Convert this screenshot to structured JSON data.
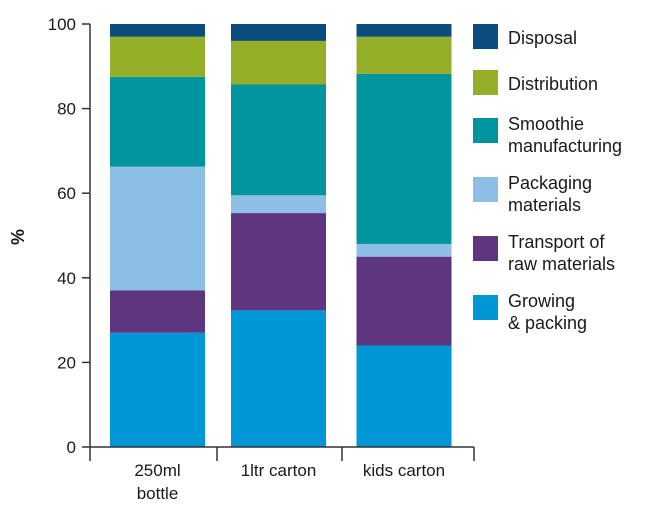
{
  "chart_data": {
    "type": "bar",
    "stacked": true,
    "ylabel": "%",
    "ylim": [
      0,
      100
    ],
    "yticks": [
      0,
      20,
      40,
      60,
      80,
      100
    ],
    "grid": false,
    "legend_position": "right",
    "categories": [
      "250ml bottle",
      "1ltr carton",
      "kids carton"
    ],
    "category_lines": [
      [
        "250ml",
        "bottle"
      ],
      [
        "1ltr carton"
      ],
      [
        "kids carton"
      ]
    ],
    "series": [
      {
        "name": "Growing & packing",
        "label_lines": [
          "Growing",
          "& packing"
        ],
        "color": "#0097d7",
        "values": [
          27,
          32.3,
          24
        ]
      },
      {
        "name": "Transport of raw materials",
        "label_lines": [
          "Transport of",
          "raw materials"
        ],
        "color": "#5e357f",
        "values": [
          10,
          23,
          21
        ]
      },
      {
        "name": "Packaging materials",
        "label_lines": [
          "Packaging",
          "materials"
        ],
        "color": "#8dbfe6",
        "values": [
          29.3,
          4.2,
          3
        ]
      },
      {
        "name": "Smoothie manufacturing",
        "label_lines": [
          "Smoothie",
          "manufacturing"
        ],
        "color": "#00949f",
        "values": [
          21.2,
          26.2,
          40.2
        ]
      },
      {
        "name": "Distribution",
        "label_lines": [
          "Distribution"
        ],
        "color": "#95ae27",
        "values": [
          9.5,
          10.3,
          8.8
        ]
      },
      {
        "name": "Disposal",
        "label_lines": [
          "Disposal"
        ],
        "color": "#0b4c7e",
        "values": [
          3,
          4,
          3
        ]
      }
    ]
  }
}
